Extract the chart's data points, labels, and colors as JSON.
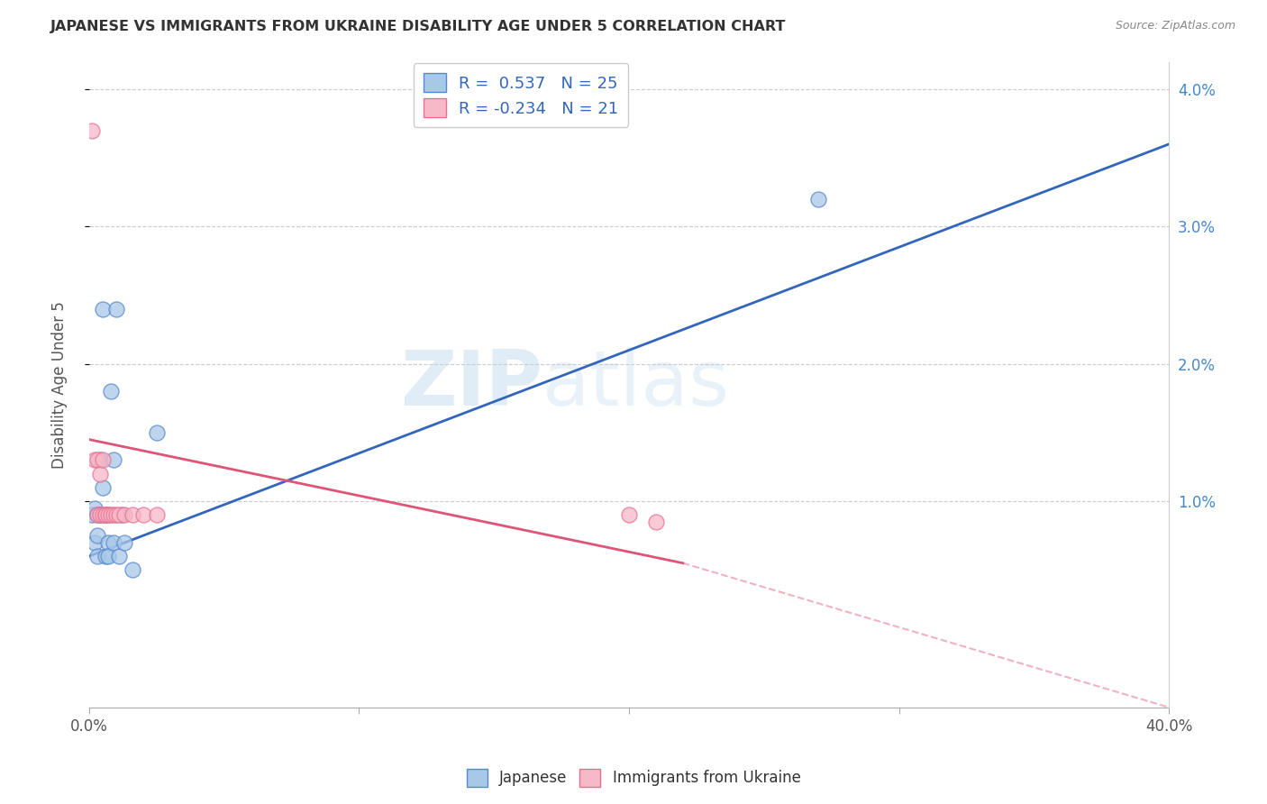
{
  "title": "JAPANESE VS IMMIGRANTS FROM UKRAINE DISABILITY AGE UNDER 5 CORRELATION CHART",
  "source": "Source: ZipAtlas.com",
  "ylabel": "Disability Age Under 5",
  "legend_blue_label": "Japanese",
  "legend_pink_label": "Immigrants from Ukraine",
  "r_blue": 0.537,
  "n_blue": 25,
  "r_pink": -0.234,
  "n_pink": 21,
  "blue_scatter_color": "#a8c8e8",
  "blue_edge_color": "#5588cc",
  "pink_scatter_color": "#f7b8c8",
  "pink_edge_color": "#e87090",
  "blue_line_color": "#3366bb",
  "pink_line_color": "#dd5577",
  "watermark_zip": "ZIP",
  "watermark_atlas": "atlas",
  "xlim": [
    0.0,
    0.4
  ],
  "ylim": [
    -0.005,
    0.042
  ],
  "xtick_positions": [
    0.0,
    0.1,
    0.2,
    0.3,
    0.4
  ],
  "ytick_positions": [
    0.01,
    0.02,
    0.03,
    0.04
  ],
  "ytick_labels": [
    "1.0%",
    "2.0%",
    "3.0%",
    "4.0%"
  ],
  "japanese_x": [
    0.001,
    0.002,
    0.002,
    0.003,
    0.003,
    0.003,
    0.004,
    0.004,
    0.005,
    0.005,
    0.006,
    0.006,
    0.007,
    0.007,
    0.007,
    0.008,
    0.009,
    0.009,
    0.01,
    0.011,
    0.012,
    0.013,
    0.016,
    0.025,
    0.27
  ],
  "japanese_y": [
    0.009,
    0.0095,
    0.007,
    0.009,
    0.0075,
    0.006,
    0.013,
    0.009,
    0.024,
    0.011,
    0.009,
    0.006,
    0.009,
    0.007,
    0.006,
    0.018,
    0.013,
    0.007,
    0.024,
    0.006,
    0.009,
    0.007,
    0.005,
    0.015,
    0.032
  ],
  "ukraine_x": [
    0.001,
    0.002,
    0.003,
    0.003,
    0.004,
    0.004,
    0.005,
    0.005,
    0.006,
    0.006,
    0.007,
    0.008,
    0.009,
    0.01,
    0.011,
    0.013,
    0.016,
    0.02,
    0.025,
    0.2,
    0.21
  ],
  "ukraine_y": [
    0.037,
    0.013,
    0.013,
    0.009,
    0.012,
    0.009,
    0.013,
    0.009,
    0.009,
    0.009,
    0.009,
    0.009,
    0.009,
    0.009,
    0.009,
    0.009,
    0.009,
    0.009,
    0.009,
    0.009,
    0.0085
  ],
  "blue_line_x0": 0.0,
  "blue_line_y0": 0.006,
  "blue_line_x1": 0.4,
  "blue_line_y1": 0.036,
  "pink_line_x0": 0.0,
  "pink_line_y0": 0.0145,
  "pink_line_x1_solid": 0.22,
  "pink_line_y1_solid": 0.0055,
  "pink_line_x1_dash": 0.4,
  "pink_line_y1_dash": -0.005
}
